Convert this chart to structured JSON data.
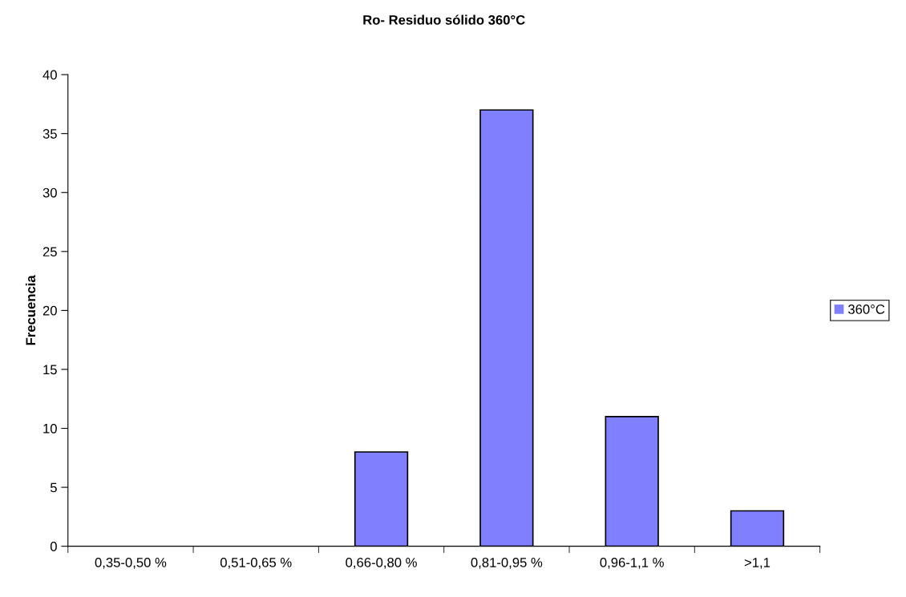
{
  "chart_data": {
    "type": "bar",
    "title": "Ro- Residuo sólido 360°C",
    "ylabel": "Frecuencia",
    "categories": [
      "0,35-0,50 %",
      "0,51-0,65 %",
      "0,66-0,80 %",
      "0,81-0,95 %",
      "0,96-1,1 %",
      ">1,1"
    ],
    "series": [
      {
        "name": "360°C",
        "color": "#8080ff",
        "values": [
          0,
          0,
          8,
          37,
          11,
          3
        ]
      }
    ],
    "ylim": [
      0,
      40
    ],
    "yticks": [
      0,
      5,
      10,
      15,
      20,
      25,
      30,
      35,
      40
    ],
    "grid": false,
    "legend": "right"
  }
}
